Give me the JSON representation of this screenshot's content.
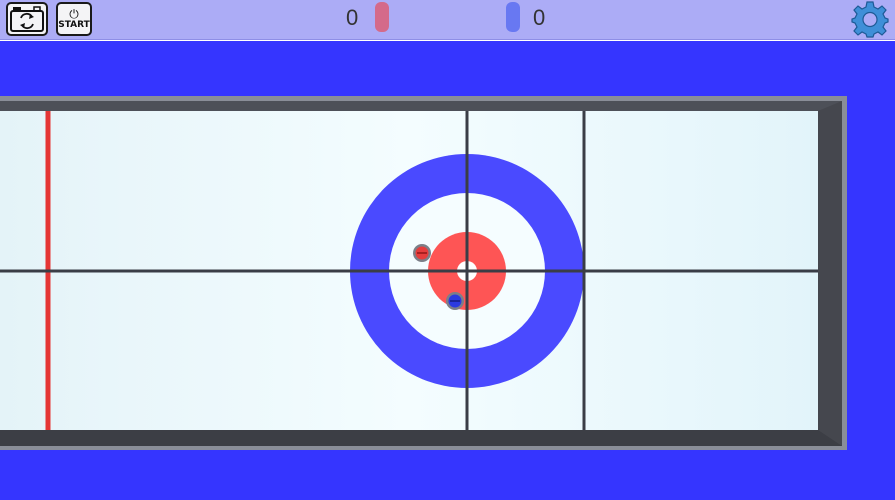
{
  "toolbar": {
    "camera_icon": "camera-switch-icon",
    "start_label": "START",
    "start_icon": "power-icon",
    "settings_icon": "gear-icon"
  },
  "scores": {
    "red": {
      "value": "0",
      "color": "#d46a8a"
    },
    "blue": {
      "value": "0",
      "color": "#6878f2"
    }
  },
  "stones": [
    {
      "team": "red",
      "color": "#e53d3d"
    },
    {
      "team": "blue",
      "color": "#2b3ae0"
    }
  ],
  "colors": {
    "background": "#3535ff",
    "toolbar": "#acacf6",
    "ice": "#eefbfd",
    "house_outer": "#4a4aff",
    "house_button": "#fe5555",
    "hog_line": "#e53535",
    "rails": "#45474e",
    "rail_edge": "#8a8e98",
    "lines": "#3a3d46"
  }
}
